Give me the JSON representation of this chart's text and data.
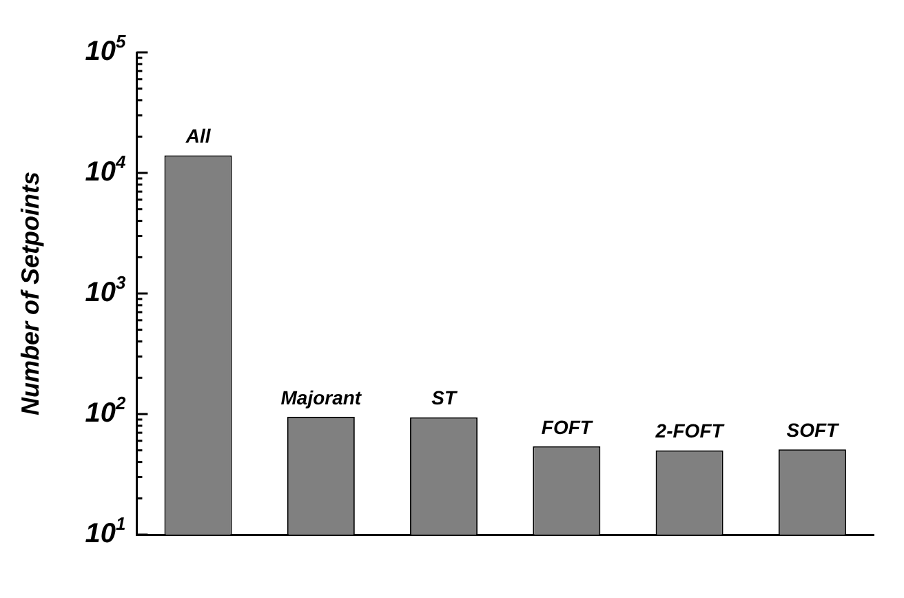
{
  "chart_data": {
    "type": "bar",
    "ylabel": "Number of Setpoints",
    "categories": [
      "All",
      "Majorant",
      "ST",
      "FOFT",
      "2-FOFT",
      "SOFT"
    ],
    "values": [
      14000,
      95,
      94,
      54,
      50,
      51
    ],
    "color": "#808080",
    "log": "y",
    "ylim": [
      10,
      100000
    ],
    "yticks": [
      {
        "value": 10,
        "label": "10$^{1}$"
      },
      {
        "value": 20,
        "label": null
      },
      {
        "value": 30,
        "label": null
      },
      {
        "value": 40,
        "label": null
      },
      {
        "value": 50,
        "label": null
      },
      {
        "value": 60,
        "label": null
      },
      {
        "value": 70,
        "label": null
      },
      {
        "value": 80,
        "label": null
      },
      {
        "value": 90,
        "label": null
      },
      {
        "value": 100,
        "label": "10$^{2}$"
      },
      {
        "value": 200,
        "label": null
      },
      {
        "value": 300,
        "label": null
      },
      {
        "value": 400,
        "label": null
      },
      {
        "value": 500,
        "label": null
      },
      {
        "value": 600,
        "label": null
      },
      {
        "value": 700,
        "label": null
      },
      {
        "value": 800,
        "label": null
      },
      {
        "value": 900,
        "label": null
      },
      {
        "value": 1000,
        "label": "10$^{3}$"
      },
      {
        "value": 2000,
        "label": null
      },
      {
        "value": 3000,
        "label": null
      },
      {
        "value": 4000,
        "label": null
      },
      {
        "value": 5000,
        "label": null
      },
      {
        "value": 6000,
        "label": null
      },
      {
        "value": 7000,
        "label": null
      },
      {
        "value": 8000,
        "label": null
      },
      {
        "value": 9000,
        "label": null
      },
      {
        "value": 10000,
        "label": "10$^{4}$"
      },
      {
        "value": 20000,
        "label": null
      },
      {
        "value": 30000,
        "label": null
      },
      {
        "value": 40000,
        "label": null
      },
      {
        "value": 50000,
        "label": null
      },
      {
        "value": 60000,
        "label": null
      },
      {
        "value": 70000,
        "label": null
      },
      {
        "value": 80000,
        "label": null
      },
      {
        "value": 90000,
        "label": null
      },
      {
        "value": 100000,
        "label": "10$^{5}$"
      }
    ],
    "grid": false
  }
}
